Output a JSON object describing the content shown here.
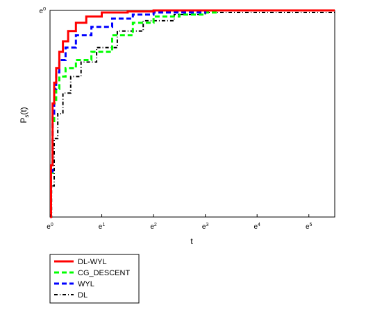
{
  "chart_data": {
    "type": "line",
    "title": "",
    "xlabel": "t",
    "ylabel": "Ps(t)",
    "x_scale": "log (base e)",
    "x_ticks": [
      {
        "value": 0,
        "label": "e0"
      },
      {
        "value": 1,
        "label": "e1"
      },
      {
        "value": 2,
        "label": "e2"
      },
      {
        "value": 3,
        "label": "e3"
      },
      {
        "value": 4,
        "label": "e4"
      },
      {
        "value": 5,
        "label": "e5"
      }
    ],
    "y_ticks": [
      {
        "value": 1,
        "label": "e0"
      }
    ],
    "xlim": [
      0,
      5.5
    ],
    "ylim": [
      0,
      1
    ],
    "legend_position": "below plot, left",
    "series": [
      {
        "name": "DL-WYL",
        "color": "#ff0000",
        "dash": "solid",
        "x": [
          0,
          0.02,
          0.05,
          0.08,
          0.12,
          0.18,
          0.25,
          0.35,
          0.5,
          0.7,
          1.0,
          1.5,
          2.0,
          3.0,
          5.5
        ],
        "y": [
          0.0,
          0.25,
          0.55,
          0.65,
          0.72,
          0.8,
          0.85,
          0.9,
          0.94,
          0.97,
          0.99,
          0.995,
          1.0,
          1.0,
          1.0
        ]
      },
      {
        "name": "CG_DESCENT",
        "color": "#00ff00",
        "dash": "dashed",
        "x": [
          0,
          0.02,
          0.05,
          0.08,
          0.12,
          0.18,
          0.3,
          0.5,
          0.8,
          1.2,
          1.6,
          2.0,
          2.5,
          3.0,
          3.2,
          5.5
        ],
        "y": [
          0.0,
          0.2,
          0.45,
          0.55,
          0.62,
          0.68,
          0.72,
          0.76,
          0.8,
          0.88,
          0.94,
          0.97,
          0.98,
          0.99,
          1.0,
          1.0
        ]
      },
      {
        "name": "WYL",
        "color": "#0000ff",
        "dash": "dashed",
        "x": [
          0,
          0.02,
          0.05,
          0.08,
          0.12,
          0.18,
          0.3,
          0.5,
          0.8,
          1.2,
          1.6,
          2.0,
          3.0,
          5.5
        ],
        "y": [
          0.0,
          0.22,
          0.5,
          0.62,
          0.7,
          0.76,
          0.82,
          0.88,
          0.92,
          0.96,
          0.98,
          0.99,
          1.0,
          1.0
        ]
      },
      {
        "name": "DL",
        "color": "#000000",
        "dash": "dash-dot",
        "x": [
          0,
          0.03,
          0.08,
          0.15,
          0.25,
          0.4,
          0.6,
          0.9,
          1.3,
          1.8,
          2.4,
          3.0,
          5.5
        ],
        "y": [
          0.0,
          0.15,
          0.38,
          0.5,
          0.6,
          0.68,
          0.75,
          0.82,
          0.9,
          0.95,
          0.98,
          0.99,
          1.0
        ]
      }
    ]
  }
}
